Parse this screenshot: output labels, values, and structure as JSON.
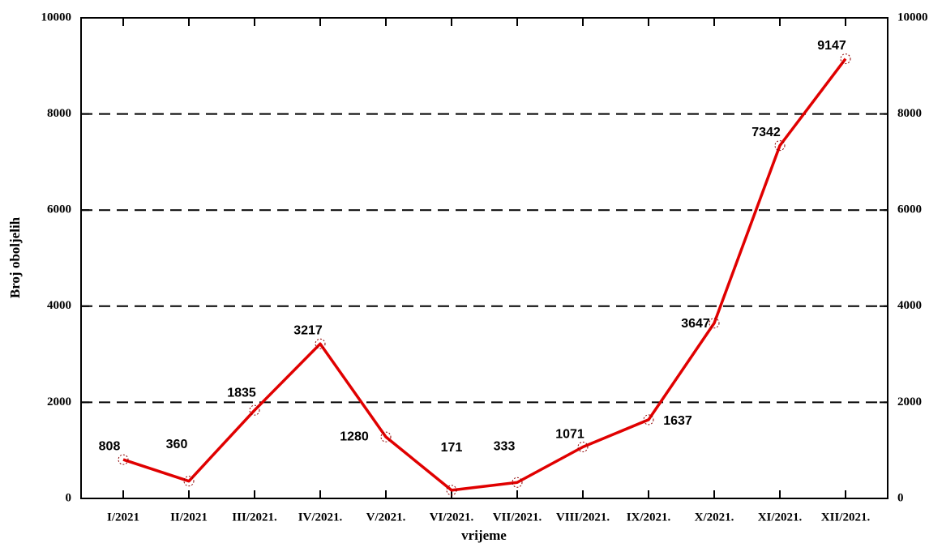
{
  "chart_data": {
    "type": "line",
    "x_label": "vrijeme",
    "y_label": "Broj oboljelih",
    "categories": [
      "I/2021",
      "II/2021",
      "III/2021.",
      "IV/2021.",
      "V/2021.",
      "VI/2021.",
      "VII/2021.",
      "VIII/2021.",
      "IX/2021.",
      "X/2021.",
      "XI/2021.",
      "XII/2021."
    ],
    "values": [
      808,
      360,
      1835,
      3217,
      1280,
      171,
      333,
      1071,
      1637,
      3647,
      7342,
      9147
    ],
    "color": "#e00000",
    "ylim": [
      0,
      10000
    ],
    "yticks": [
      0,
      2000,
      4000,
      6000,
      8000,
      10000
    ],
    "y2lim": [
      0,
      10000
    ],
    "y2ticks": [
      0,
      2000,
      4000,
      6000,
      8000,
      10000
    ],
    "grid": true
  }
}
